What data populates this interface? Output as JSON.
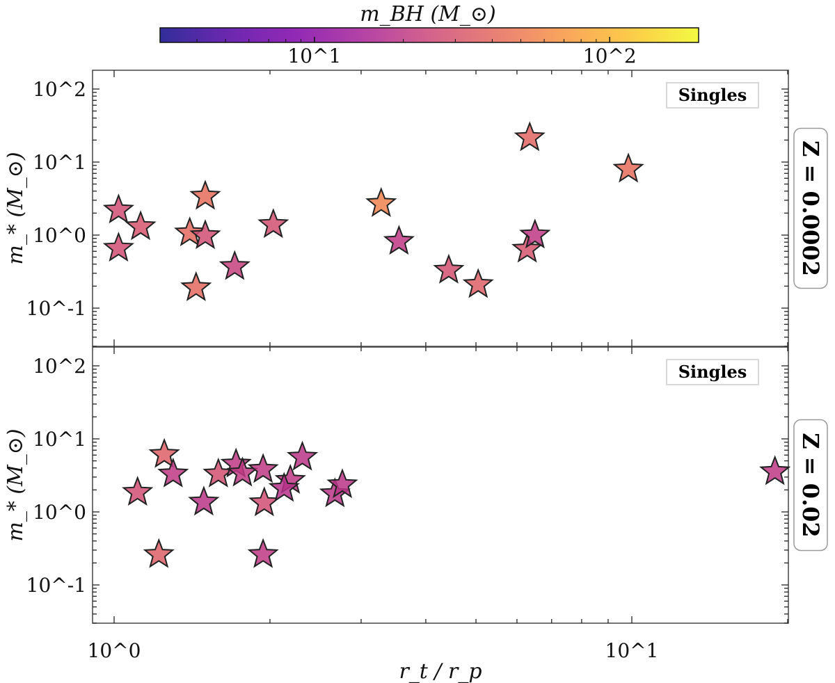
{
  "chart_data": [
    {
      "type": "scatter",
      "panel": "top",
      "marker": "star",
      "annotation": "Singles",
      "side_label": "Z = 0.0002",
      "xlabel": "r_t / r_p",
      "ylabel": "m_* (M_⊙)",
      "xscale": "log",
      "yscale": "log",
      "xlim": [
        0.91,
        20
      ],
      "ylim": [
        0.03,
        180
      ],
      "x_ticks": [
        "10^0",
        "10^1"
      ],
      "y_ticks": [
        "10^-1",
        "10^0",
        "10^1",
        "10^2"
      ],
      "points": [
        {
          "x": 1.02,
          "y": 2.2,
          "m_bh": 27
        },
        {
          "x": 1.02,
          "y": 0.66,
          "m_bh": 27
        },
        {
          "x": 1.125,
          "y": 1.3,
          "m_bh": 30
        },
        {
          "x": 1.4,
          "y": 1.07,
          "m_bh": 40
        },
        {
          "x": 1.5,
          "y": 0.98,
          "m_bh": 27
        },
        {
          "x": 1.5,
          "y": 3.4,
          "m_bh": 42
        },
        {
          "x": 1.44,
          "y": 0.19,
          "m_bh": 40
        },
        {
          "x": 1.71,
          "y": 0.37,
          "m_bh": 22
        },
        {
          "x": 2.03,
          "y": 1.39,
          "m_bh": 28
        },
        {
          "x": 3.28,
          "y": 2.7,
          "m_bh": 55
        },
        {
          "x": 3.55,
          "y": 0.82,
          "m_bh": 20
        },
        {
          "x": 6.35,
          "y": 21.5,
          "m_bh": 38
        },
        {
          "x": 9.85,
          "y": 8.0,
          "m_bh": 42
        },
        {
          "x": 6.28,
          "y": 0.64,
          "m_bh": 30
        },
        {
          "x": 6.5,
          "y": 1.0,
          "m_bh": 20
        },
        {
          "x": 4.43,
          "y": 0.33,
          "m_bh": 28
        },
        {
          "x": 5.05,
          "y": 0.21,
          "m_bh": 35
        }
      ]
    },
    {
      "type": "scatter",
      "panel": "bottom",
      "marker": "star",
      "annotation": "Singles",
      "side_label": "Z = 0.02",
      "xlabel": "r_t / r_p",
      "ylabel": "m_* (M_⊙)",
      "xscale": "log",
      "yscale": "log",
      "xlim": [
        0.91,
        20
      ],
      "ylim": [
        0.03,
        180
      ],
      "x_ticks": [
        "10^0",
        "10^1"
      ],
      "y_ticks": [
        "10^-1",
        "10^0",
        "10^1",
        "10^2"
      ],
      "points": [
        {
          "x": 1.11,
          "y": 1.85,
          "m_bh": 27
        },
        {
          "x": 1.25,
          "y": 6.1,
          "m_bh": 35
        },
        {
          "x": 1.3,
          "y": 3.3,
          "m_bh": 20
        },
        {
          "x": 1.22,
          "y": 0.26,
          "m_bh": 35
        },
        {
          "x": 1.49,
          "y": 1.36,
          "m_bh": 19
        },
        {
          "x": 1.59,
          "y": 3.3,
          "m_bh": 28
        },
        {
          "x": 1.72,
          "y": 4.5,
          "m_bh": 20
        },
        {
          "x": 1.77,
          "y": 3.4,
          "m_bh": 20
        },
        {
          "x": 1.94,
          "y": 3.8,
          "m_bh": 20
        },
        {
          "x": 1.95,
          "y": 1.33,
          "m_bh": 27
        },
        {
          "x": 1.94,
          "y": 0.26,
          "m_bh": 20
        },
        {
          "x": 2.31,
          "y": 5.6,
          "m_bh": 19
        },
        {
          "x": 2.19,
          "y": 2.7,
          "m_bh": 20
        },
        {
          "x": 2.13,
          "y": 2.1,
          "m_bh": 18
        },
        {
          "x": 2.67,
          "y": 1.77,
          "m_bh": 19
        },
        {
          "x": 2.76,
          "y": 2.35,
          "m_bh": 19
        },
        {
          "x": 18.9,
          "y": 3.55,
          "m_bh": 20
        }
      ]
    }
  ],
  "colorbar": {
    "label": "m_BH (M_⊙)",
    "colormap": "plasma",
    "scale": "log",
    "range": [
      3,
      200
    ],
    "ticks": [
      "10^1",
      "10^2"
    ]
  }
}
